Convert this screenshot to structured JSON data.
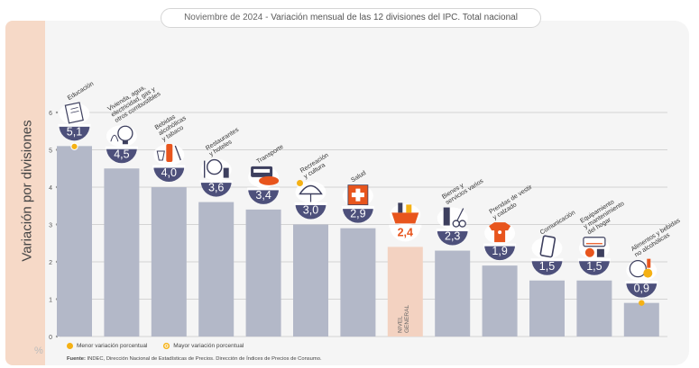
{
  "header": {
    "date": "Noviembre de 2024",
    "title": "Variación mensual de las 12 divisiones del IPC. Total nacional"
  },
  "colors": {
    "bar": "#b3b8c8",
    "bar_highlight": "#f3d2c1",
    "badge": "#4d507b",
    "badge_highlight": "#e8551d",
    "accent": "#f5b114"
  },
  "chart_data": {
    "type": "bar",
    "ylabel": "Variación por divisiones",
    "y_unit": "%",
    "ylim": [
      0,
      6
    ],
    "yticks": [
      "0",
      "1",
      "2",
      "3",
      "4",
      "5",
      "6"
    ],
    "grid": true,
    "categories": [
      "Educación",
      "Vivienda, agua, electricidad, gas y otros combustibles",
      "Bebidas alcohólicas y tabaco",
      "Restaurantes y hoteles",
      "Transporte",
      "Recreación y cultura",
      "Salud",
      "NIVEL GENERAL",
      "Bienes y servicios varios",
      "Prendas de vestir y calzado",
      "Comunicación",
      "Equipamiento y mantenimiento del hogar",
      "Alimentos y bebidas no alcohólicas"
    ],
    "values": [
      5.1,
      4.5,
      4.0,
      3.6,
      3.4,
      3.0,
      2.9,
      2.4,
      2.3,
      1.9,
      1.5,
      1.5,
      0.9
    ],
    "value_labels": [
      "5,1",
      "4,5",
      "4,0",
      "3,6",
      "3,4",
      "3,0",
      "2,9",
      "2,4",
      "2,3",
      "1,9",
      "1,5",
      "1,5",
      "0,9"
    ],
    "category_label_lines": [
      [
        "Educación"
      ],
      [
        "Vivienda, agua,",
        "electricidad, gas y",
        "otros combustibles"
      ],
      [
        "Bebidas",
        "alcohólicas",
        "y tabaco"
      ],
      [
        "Restaurantes",
        "y hoteles"
      ],
      [
        "Transporte"
      ],
      [
        "Recreación",
        "y cultura"
      ],
      [
        "Salud"
      ],
      [],
      [
        "Bienes y",
        "servicios varios"
      ],
      [
        "Prendas de vestir",
        "y calzado"
      ],
      [
        "Comunicación"
      ],
      [
        "Equipamiento",
        "y mantenimiento",
        "del hogar"
      ],
      [
        "Alimentos y bebidas",
        "no alcohólicas"
      ]
    ],
    "general_label_lines": [
      "NIVEL",
      "GENERAL"
    ],
    "highlight_index": 7,
    "icons": [
      "notebook-icon",
      "lightbulb-icon",
      "bottle-glass-icon",
      "cutlery-icon",
      "bus-car-icon",
      "umbrella-sun-icon",
      "medical-cross-icon",
      "shopping-basket-icon",
      "comb-scissors-icon",
      "tshirt-icon",
      "smartphone-icon",
      "air-conditioner-icon",
      "food-groceries-icon"
    ],
    "markers": [
      {
        "type": "max",
        "index": 0
      },
      {
        "type": "min",
        "index": 12
      }
    ]
  },
  "legend": {
    "min_label": "Menor variación porcentual",
    "max_label": "Mayor variación porcentual"
  },
  "source": {
    "label": "Fuente:",
    "text": "INDEC, Dirección Nacional de Estadísticas de Precios. Dirección de Índices de Precios de Consumo."
  }
}
